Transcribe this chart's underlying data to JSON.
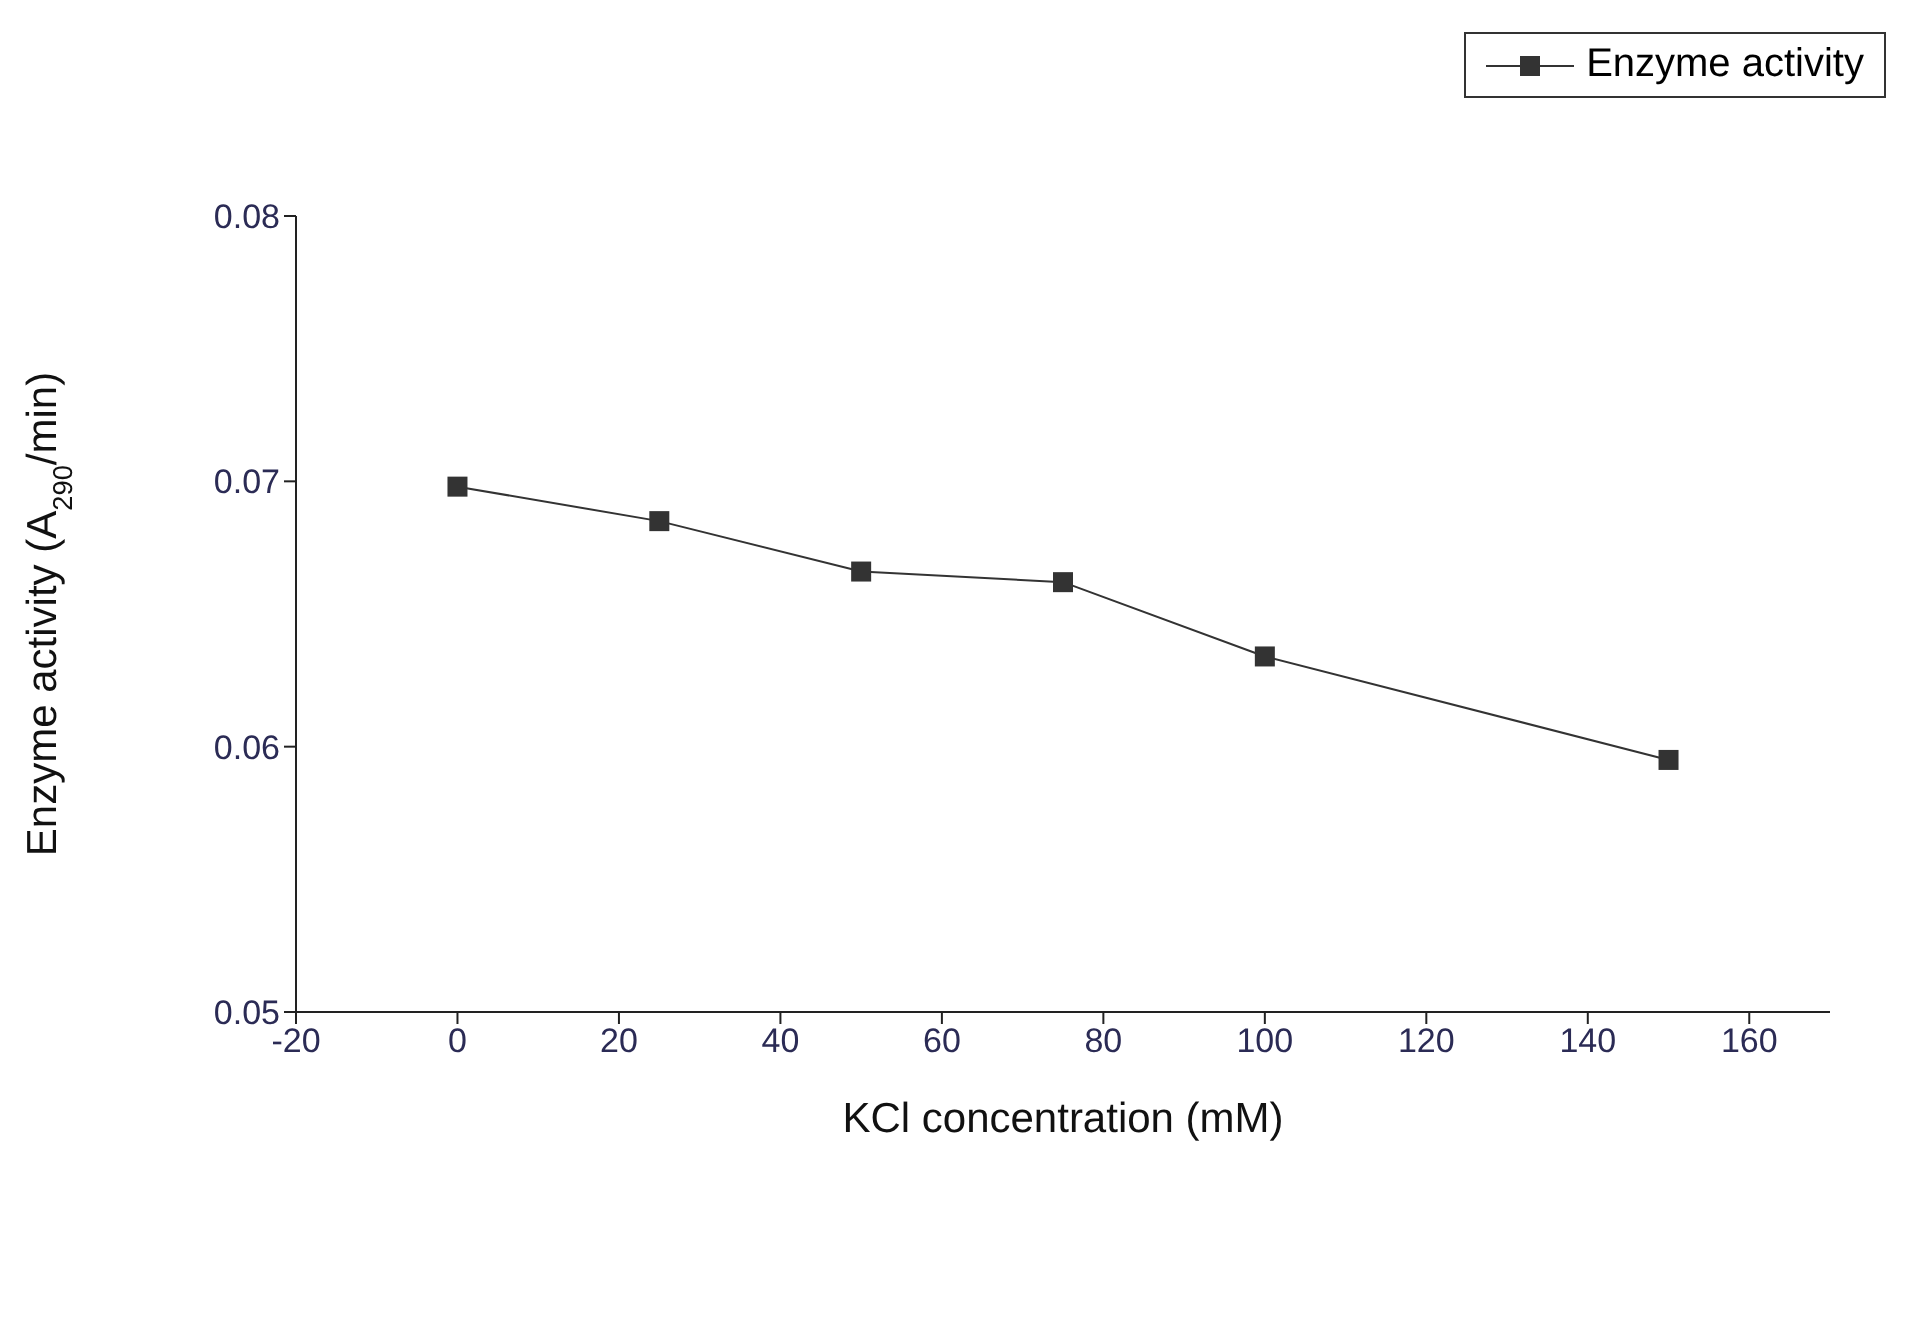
{
  "chart_data": {
    "type": "line",
    "xlabel": "KCl concentration (mM)",
    "ylabel": "Enzyme activity (A$_{290}$/min)",
    "x": [
      0,
      25,
      50,
      75,
      100,
      150
    ],
    "series": [
      {
        "name": "Enzyme activity",
        "color": "#333333",
        "values": [
          0.0698,
          0.0685,
          0.0666,
          0.0662,
          0.0634,
          0.0595
        ]
      }
    ],
    "xlim": [
      -20,
      170
    ],
    "xticks": [
      -20,
      0,
      20,
      40,
      60,
      80,
      100,
      120,
      140,
      160
    ],
    "ylim": [
      0.05,
      0.08
    ],
    "yticks": [
      0.05,
      0.06,
      0.07,
      0.08
    ],
    "grid": false,
    "legend": "top right",
    "marker": "square",
    "line_style": "solid"
  }
}
